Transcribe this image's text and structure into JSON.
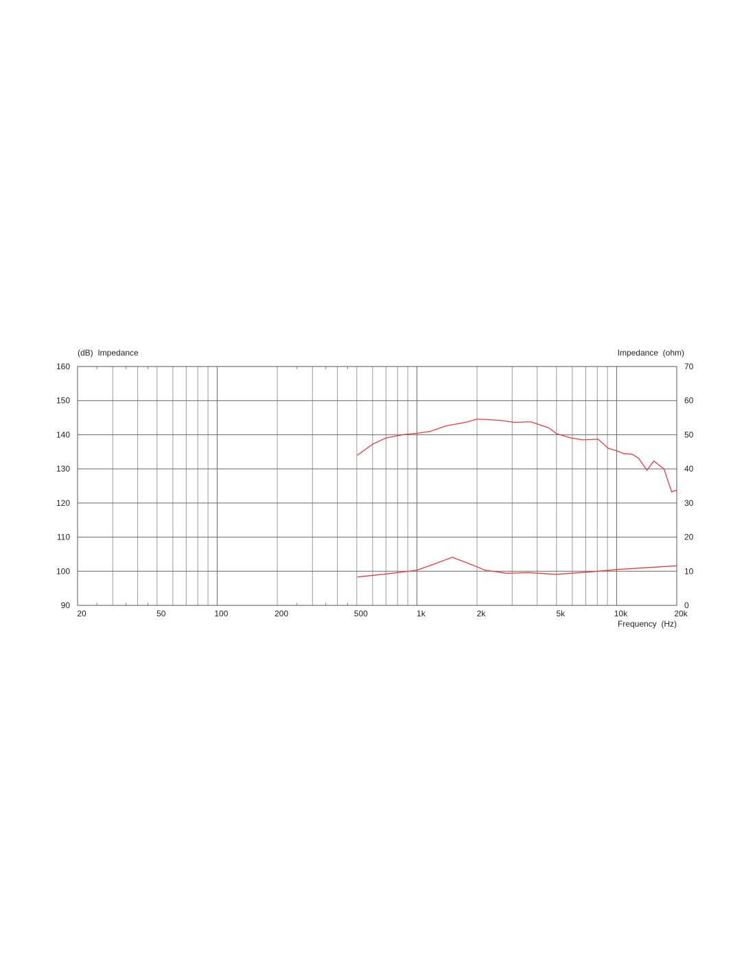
{
  "chart_data": {
    "type": "line",
    "left_axis_label": "(dB)  Impedance",
    "right_axis_label": "Impedance  (ohm)",
    "xlabel": "Frequency  (Hz)",
    "x_scale": "log",
    "xlim": [
      20,
      20000
    ],
    "ylim_left": [
      90,
      160
    ],
    "ylim_right": [
      0,
      70
    ],
    "grid": true,
    "line_color": "#e83a3a",
    "x_ticks": [
      {
        "value": 20,
        "label": "20"
      },
      {
        "value": 50,
        "label": "50"
      },
      {
        "value": 100,
        "label": "100"
      },
      {
        "value": 200,
        "label": "200"
      },
      {
        "value": 500,
        "label": "500"
      },
      {
        "value": 1000,
        "label": "1k"
      },
      {
        "value": 2000,
        "label": "2k"
      },
      {
        "value": 5000,
        "label": "5k"
      },
      {
        "value": 10000,
        "label": "10k"
      },
      {
        "value": 20000,
        "label": "20k"
      }
    ],
    "y_ticks_left": [
      "160",
      "150",
      "140",
      "130",
      "120",
      "110",
      "100",
      "90"
    ],
    "y_ticks_right": [
      "70",
      "60",
      "50",
      "40",
      "30",
      "20",
      "10",
      "0"
    ],
    "series": [
      {
        "axis": "left",
        "x": [
          503,
          601,
          703,
          871,
          1000,
          1167,
          1400,
          1775,
          2000,
          2637,
          3080,
          3707,
          4580,
          5000,
          5960,
          6770,
          8080,
          9090,
          10000,
          10820,
          11980,
          12930,
          14180,
          15340,
          17250,
          18850,
          20000
        ],
        "y": [
          134.0,
          137.3,
          139.1,
          140.1,
          140.4,
          141.0,
          142.6,
          143.7,
          144.6,
          144.2,
          143.6,
          143.8,
          142.0,
          140.3,
          139.0,
          138.5,
          138.7,
          136.0,
          135.3,
          134.5,
          134.3,
          133.0,
          129.6,
          132.3,
          130.0,
          123.3,
          123.8
        ]
      },
      {
        "axis": "right",
        "x": [
          503,
          725,
          1000,
          1223,
          1503,
          1775,
          2200,
          2830,
          3600,
          5000,
          7700,
          10000,
          20000
        ],
        "y": [
          8.3,
          9.3,
          10.3,
          12.1,
          14.1,
          12.5,
          10.3,
          9.4,
          9.6,
          9.1,
          9.9,
          10.5,
          11.6
        ]
      }
    ]
  }
}
